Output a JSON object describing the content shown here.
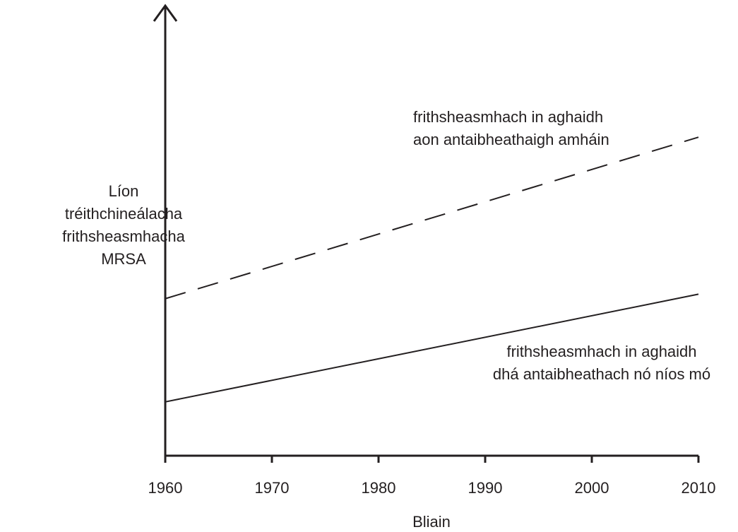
{
  "chart_data": {
    "type": "line",
    "x_label": "Bliain",
    "y_label": "Líon\ntréithchineálacha\nfrithsheasmhacha\nMRSA",
    "x": [
      1960,
      2010
    ],
    "series": [
      {
        "name": "frithsheasmhach in aghaidh\naon antaibheathaigh amháin",
        "color": "#231f20",
        "dashed": true,
        "values": [
          35,
          71
        ]
      },
      {
        "name": "frithsheasmhach in aghaidh\ndhá antaibheathach nó níos mó",
        "color": "#231f20",
        "dashed": false,
        "values": [
          12,
          36
        ]
      }
    ],
    "xlim": [
      1960,
      2010
    ],
    "xticks": [
      1960,
      1970,
      1980,
      1990,
      2000,
      2010
    ],
    "ylim": [
      0,
      100
    ]
  }
}
